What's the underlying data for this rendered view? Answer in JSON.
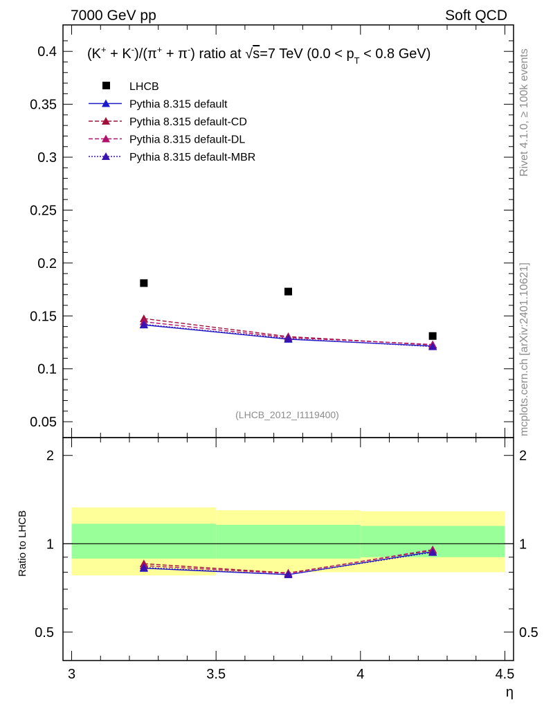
{
  "header": {
    "left": "7000 GeV pp",
    "right": "Soft QCD"
  },
  "side_labels": {
    "rivet": "Rivet 4.1.0, ≥ 100k events",
    "mcplots": "mcplots.cern.ch [arXiv:2401.10621]"
  },
  "watermark": "(LHCB_2012_I1119400)",
  "title": {
    "pre": "(K",
    "mid1": " + K",
    "mid2": ")/(π",
    "mid3": " + π",
    "mid4": ") ratio at ",
    "sqrt": "√",
    "s": "s",
    "post1": "=7 TeV (0.0 < p",
    "sub": "T",
    "post2": " < 0.8 GeV)",
    "plus": "+",
    "minus": "-"
  },
  "legend": [
    {
      "label": "LHCB",
      "color": "#000000",
      "marker": "square"
    },
    {
      "label": "Pythia 8.315 default",
      "color": "#1a1acc",
      "marker": "triangle",
      "dash": "solid"
    },
    {
      "label": "Pythia 8.315 default-CD",
      "color": "#a0103a",
      "marker": "triangle",
      "dash": "dashed"
    },
    {
      "label": "Pythia 8.315 default-DL",
      "color": "#b0106a",
      "marker": "triangle",
      "dash": "dashed"
    },
    {
      "label": "Pythia 8.315 default-MBR",
      "color": "#3a12b0",
      "marker": "triangle",
      "dash": "dotted"
    }
  ],
  "chart_data": {
    "type": "scatter",
    "xlabel": "η",
    "ylabel_ratio": "Ratio to LHCB",
    "x_ticks": [
      "3",
      "3.5",
      "4",
      "4.5"
    ],
    "y_ticks_main": [
      "0.05",
      "0.1",
      "0.15",
      "0.2",
      "0.25",
      "0.3",
      "0.35",
      "0.4"
    ],
    "y_ticks_ratio": [
      "0.5",
      "1",
      "2"
    ],
    "xlim": [
      2.97,
      4.53
    ],
    "ylim_main": [
      0.035,
      0.425
    ],
    "ylim_ratio": [
      0.4,
      2.3
    ],
    "bins": [
      [
        3.0,
        3.5
      ],
      [
        3.5,
        4.0
      ],
      [
        4.0,
        4.5
      ]
    ],
    "x": [
      3.25,
      3.75,
      4.25
    ],
    "data": {
      "name": "LHCB",
      "values": [
        0.181,
        0.173,
        0.131
      ]
    },
    "bands": {
      "inner": [
        [
          0.89,
          1.17
        ],
        [
          0.89,
          1.16
        ],
        [
          0.9,
          1.15
        ]
      ],
      "outer": [
        [
          0.78,
          1.33
        ],
        [
          0.8,
          1.3
        ],
        [
          0.8,
          1.29
        ]
      ]
    },
    "series": [
      {
        "name": "Pythia 8.315 default",
        "values": [
          0.1415,
          0.128,
          0.1215
        ],
        "ratio": [
          0.825,
          0.785,
          0.94
        ]
      },
      {
        "name": "Pythia 8.315 default-CD",
        "values": [
          0.1475,
          0.1305,
          0.1225
        ],
        "ratio": [
          0.855,
          0.795,
          0.95
        ]
      },
      {
        "name": "Pythia 8.315 default-DL",
        "values": [
          0.1445,
          0.1295,
          0.123
        ],
        "ratio": [
          0.842,
          0.792,
          0.955
        ]
      },
      {
        "name": "Pythia 8.315 default-MBR",
        "values": [
          0.142,
          0.1285,
          0.121
        ],
        "ratio": [
          0.83,
          0.785,
          0.935
        ]
      }
    ]
  }
}
